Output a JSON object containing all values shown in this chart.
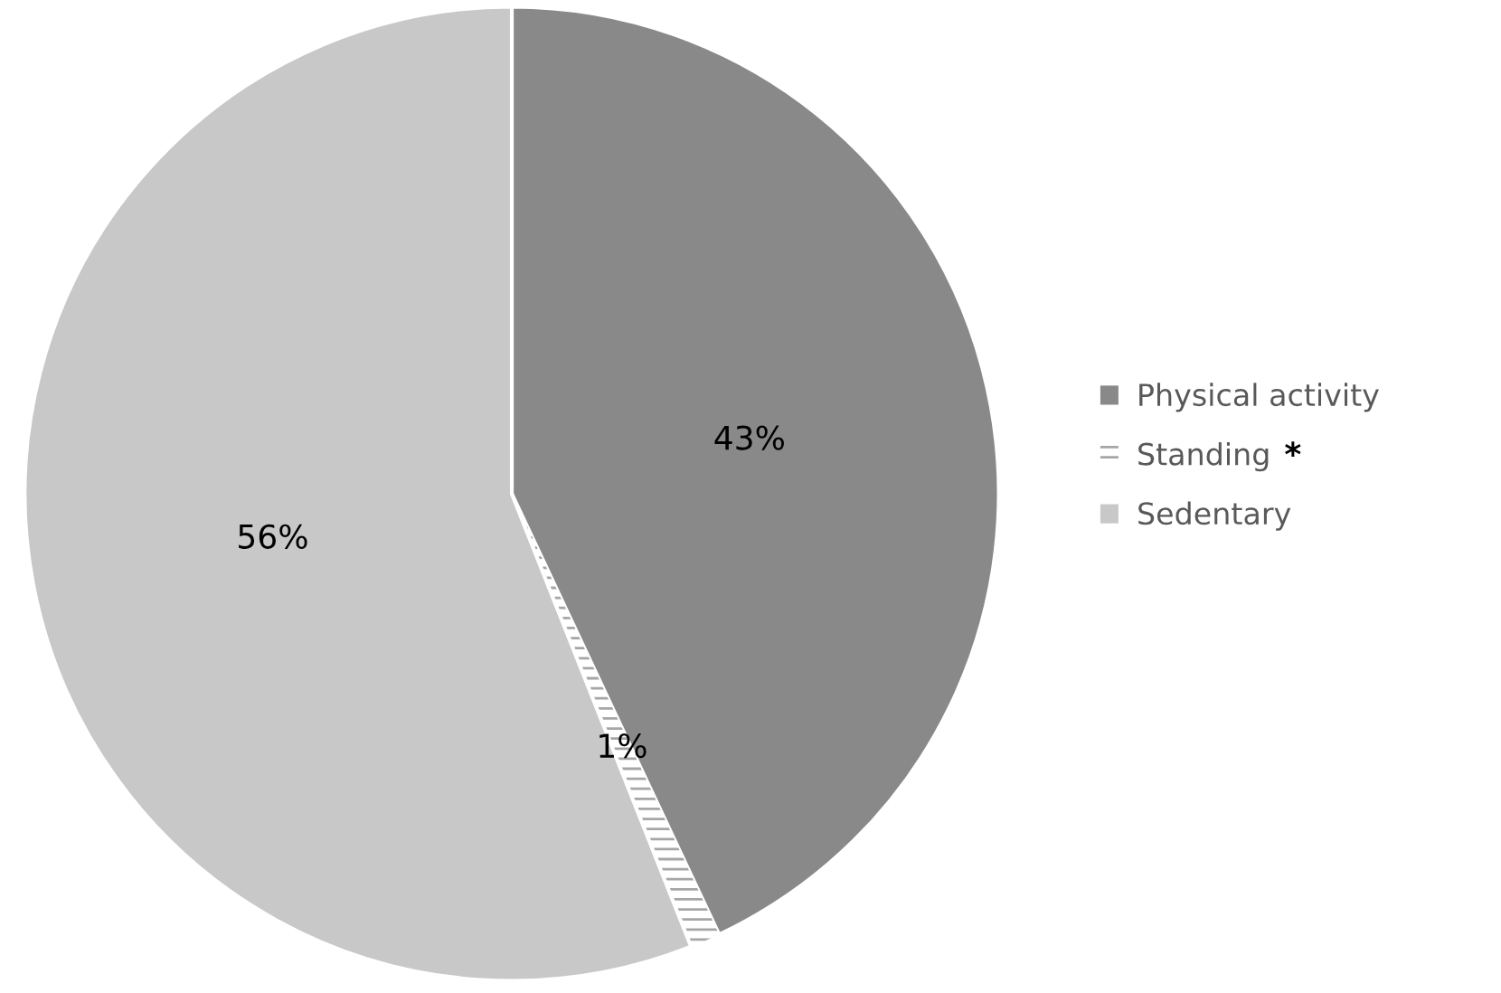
{
  "chart_data": {
    "type": "pie",
    "categories": [
      "Physical activity",
      "Standing",
      "Sedentary"
    ],
    "values": [
      43,
      1,
      56
    ],
    "colors": [
      "#898989",
      "#ffffff",
      "#c8c8c8"
    ],
    "value_labels": [
      "43%",
      "1%",
      "56%"
    ],
    "legend": "right",
    "annotations": [
      "*"
    ]
  }
}
